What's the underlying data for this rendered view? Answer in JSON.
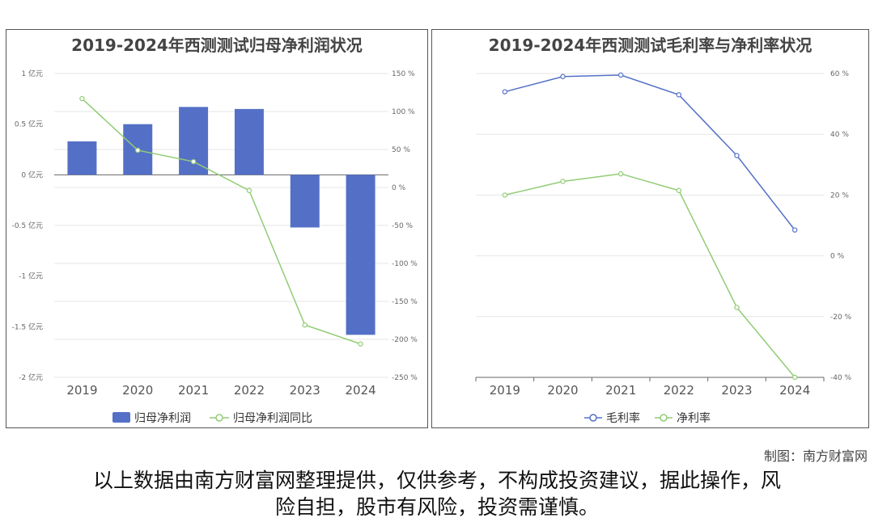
{
  "charts": {
    "left": {
      "title": "2019-2024年西测测试归母净利润状况",
      "left_ticks": [
        "1 亿元",
        "0.5 亿元",
        "0 亿元",
        "-0.5 亿元",
        "-1 亿元",
        "-1.5 亿元",
        "-2 亿元"
      ],
      "right_ticks": [
        "150 %",
        "100 %",
        "50 %",
        "0 %",
        "-50 %",
        "-100 %",
        "-150 %",
        "-200 %",
        "-250 %"
      ],
      "legend": [
        "归母净利润",
        "归母净利润同比"
      ]
    },
    "right": {
      "title": "2019-2024年西测测试毛利率与净利率状况",
      "right_ticks": [
        "60 %",
        "40 %",
        "20 %",
        "0 %",
        "-20 %",
        "-40 %"
      ],
      "legend": [
        "毛利率",
        "净利率"
      ]
    }
  },
  "chart_data": [
    {
      "type": "bar",
      "title": "2019-2024年西测测试归母净利润状况",
      "categories": [
        "2019",
        "2020",
        "2021",
        "2022",
        "2023",
        "2024"
      ],
      "series": [
        {
          "name": "归母净利润",
          "type": "bar",
          "axis": "left",
          "unit": "亿元",
          "color": "#5470c6",
          "values": [
            0.33,
            0.5,
            0.67,
            0.65,
            -0.52,
            -1.58
          ]
        },
        {
          "name": "归母净利润同比",
          "type": "line",
          "axis": "right",
          "unit": "%",
          "color": "#91cc75",
          "values": [
            117,
            49,
            34,
            -4,
            -181,
            -206
          ]
        }
      ],
      "ylim_left": [
        -2,
        1
      ],
      "ylim_right": [
        -250,
        150
      ],
      "grid": true,
      "legend_position": "bottom"
    },
    {
      "type": "line",
      "title": "2019-2024年西测测试毛利率与净利率状况",
      "categories": [
        "2019",
        "2020",
        "2021",
        "2022",
        "2023",
        "2024"
      ],
      "series": [
        {
          "name": "毛利率",
          "unit": "%",
          "color": "#5470c6",
          "values": [
            54,
            59,
            59.5,
            53,
            33,
            8.5
          ]
        },
        {
          "name": "净利率",
          "unit": "%",
          "color": "#91cc75",
          "values": [
            20,
            24.5,
            27,
            21.5,
            -17,
            -40
          ]
        }
      ],
      "ylim": [
        -40,
        60
      ],
      "grid": true,
      "legend_position": "bottom"
    }
  ],
  "footer": {
    "credit": "制图：南方财富网",
    "disclaimer_line1": "以上数据由南方财富网整理提供，仅供参考，不构成投资建议，据此操作，风",
    "disclaimer_line2": "险自担，股市有风险，投资需谨慎。"
  }
}
